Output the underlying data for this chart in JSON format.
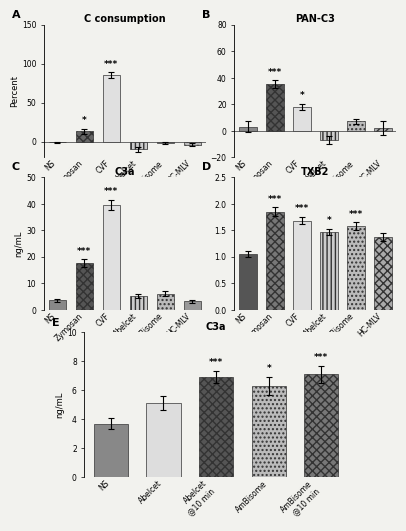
{
  "panel_A": {
    "title": "C consumption",
    "ylabel": "Percent",
    "categories": [
      "NS",
      "Zymosan",
      "CVF",
      "Abelcet",
      "AmBisome",
      "HC-MLV"
    ],
    "values": [
      -1,
      13,
      85,
      -10,
      -2,
      -4
    ],
    "errors": [
      1,
      3,
      4,
      3,
      1.5,
      2
    ],
    "ylim": [
      -20,
      150
    ],
    "yticks": [
      0,
      50,
      100,
      150
    ],
    "sig": [
      "",
      "*",
      "***",
      "",
      "",
      ""
    ],
    "bar_styles": [
      {
        "hatch": null,
        "fc": "#888888",
        "ec": "#333333"
      },
      {
        "hatch": "xxxx",
        "fc": "#666666",
        "ec": "#333333"
      },
      {
        "hatch": "====",
        "fc": "#e0e0e0",
        "ec": "#333333"
      },
      {
        "hatch": "||||",
        "fc": "#cccccc",
        "ec": "#333333"
      },
      {
        "hatch": null,
        "fc": "#aaaaaa",
        "ec": "#333333"
      },
      {
        "hatch": "....",
        "fc": "#bbbbbb",
        "ec": "#333333"
      }
    ]
  },
  "panel_B": {
    "title": "PAN-C3",
    "ylabel": "",
    "categories": [
      "NS",
      "Zymosan",
      "CVF",
      "Abelcet",
      "AmBisome",
      "HC-MLV"
    ],
    "values": [
      3,
      35,
      18,
      -7,
      7,
      2
    ],
    "errors": [
      4,
      3,
      2.5,
      3,
      2,
      5
    ],
    "ylim": [
      -20,
      80
    ],
    "yticks": [
      -20,
      0,
      20,
      40,
      60,
      80
    ],
    "sig": [
      "",
      "***",
      "*",
      "",
      "",
      ""
    ],
    "bar_styles": [
      {
        "hatch": null,
        "fc": "#888888",
        "ec": "#333333"
      },
      {
        "hatch": "xxxx",
        "fc": "#555555",
        "ec": "#333333"
      },
      {
        "hatch": "====",
        "fc": "#e0e0e0",
        "ec": "#333333"
      },
      {
        "hatch": "||||",
        "fc": "#cccccc",
        "ec": "#333333"
      },
      {
        "hatch": "....",
        "fc": "#bbbbbb",
        "ec": "#333333"
      },
      {
        "hatch": "////",
        "fc": "#aaaaaa",
        "ec": "#333333"
      }
    ]
  },
  "panel_C": {
    "title": "C3a",
    "ylabel": "ng/mL",
    "categories": [
      "NS",
      "Zymosan",
      "CVF",
      "Abelcet",
      "AmBisome",
      "HC-MLV"
    ],
    "values": [
      3.5,
      17.5,
      39.5,
      5.2,
      6.0,
      3.2
    ],
    "errors": [
      0.5,
      1.5,
      2.0,
      0.8,
      1.0,
      0.5
    ],
    "ylim": [
      0,
      50
    ],
    "yticks": [
      0,
      10,
      20,
      30,
      40,
      50
    ],
    "sig": [
      "",
      "***",
      "***",
      "",
      "",
      ""
    ],
    "bar_styles": [
      {
        "hatch": null,
        "fc": "#888888",
        "ec": "#333333"
      },
      {
        "hatch": "xxxx",
        "fc": "#555555",
        "ec": "#333333"
      },
      {
        "hatch": "====",
        "fc": "#e0e0e0",
        "ec": "#333333"
      },
      {
        "hatch": "||||",
        "fc": "#cccccc",
        "ec": "#333333"
      },
      {
        "hatch": "....",
        "fc": "#bbbbbb",
        "ec": "#333333"
      },
      {
        "hatch": null,
        "fc": "#999999",
        "ec": "#333333"
      }
    ]
  },
  "panel_D": {
    "title": "TXB2",
    "ylabel": "",
    "categories": [
      "NS",
      "Zymosan",
      "CVF",
      "Abelcet",
      "AmBisome",
      "HC-MLV"
    ],
    "values": [
      1.05,
      1.85,
      1.68,
      1.47,
      1.58,
      1.37
    ],
    "errors": [
      0.05,
      0.08,
      0.07,
      0.06,
      0.07,
      0.07
    ],
    "ylim": [
      0,
      2.5
    ],
    "yticks": [
      0.0,
      0.5,
      1.0,
      1.5,
      2.0,
      2.5
    ],
    "sig": [
      "",
      "***",
      "***",
      "*",
      "***",
      ""
    ],
    "bar_styles": [
      {
        "hatch": null,
        "fc": "#555555",
        "ec": "#333333"
      },
      {
        "hatch": "xxxx",
        "fc": "#777777",
        "ec": "#333333"
      },
      {
        "hatch": "====",
        "fc": "#e0e0e0",
        "ec": "#333333"
      },
      {
        "hatch": "||||",
        "fc": "#cccccc",
        "ec": "#333333"
      },
      {
        "hatch": "....",
        "fc": "#bbbbbb",
        "ec": "#333333"
      },
      {
        "hatch": "xxxx",
        "fc": "#aaaaaa",
        "ec": "#333333"
      }
    ]
  },
  "panel_E": {
    "title": "C3a",
    "ylabel": "ng/mL",
    "categories": [
      "NS",
      "Abelcet",
      "Abelcet\n@10 min",
      "AmBisome",
      "AmBisome\n@10 min"
    ],
    "values": [
      3.7,
      5.1,
      6.9,
      6.3,
      7.1
    ],
    "errors": [
      0.4,
      0.5,
      0.4,
      0.6,
      0.6
    ],
    "ylim": [
      0,
      10
    ],
    "yticks": [
      0,
      2,
      4,
      6,
      8,
      10
    ],
    "sig": [
      "",
      "",
      "***",
      "*",
      "***"
    ],
    "bar_styles": [
      {
        "hatch": null,
        "fc": "#888888",
        "ec": "#333333"
      },
      {
        "hatch": "====",
        "fc": "#dddddd",
        "ec": "#333333"
      },
      {
        "hatch": "xxxx",
        "fc": "#555555",
        "ec": "#333333"
      },
      {
        "hatch": "....",
        "fc": "#bbbbbb",
        "ec": "#333333"
      },
      {
        "hatch": "xxxx",
        "fc": "#777777",
        "ec": "#333333"
      }
    ]
  },
  "background_color": "#f2f2ee",
  "fontsize_title": 7,
  "fontsize_label": 6,
  "fontsize_tick": 5.5,
  "fontsize_sig": 6.5,
  "fontsize_panel": 8
}
